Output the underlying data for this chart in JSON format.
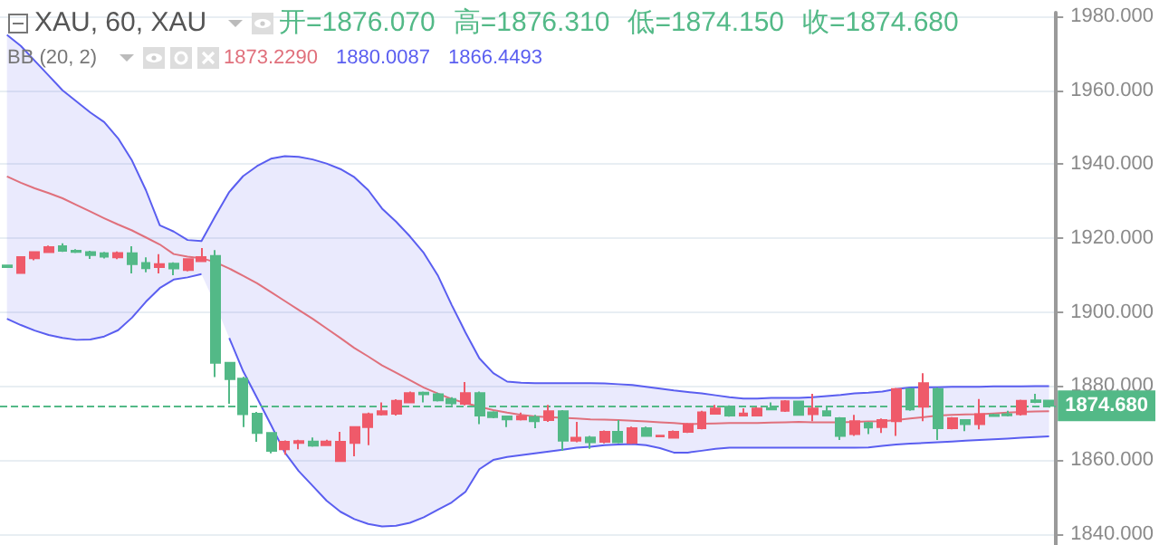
{
  "chart_data": {
    "type": "candlestick",
    "annotations": [
      "XAU, 60, XAU",
      "开=1876.070",
      "高=1876.310",
      "低=1874.150",
      "收=1874.680",
      "BB (20, 2)",
      "1873.2290",
      "1880.0087",
      "1866.4493"
    ],
    "categories": [
      null,
      null,
      null,
      null,
      null,
      null,
      null,
      null,
      null,
      null,
      null,
      null,
      null,
      null,
      null,
      null,
      null,
      null,
      null,
      null,
      null,
      null,
      null,
      null,
      null,
      null,
      null,
      null,
      null,
      null,
      null,
      null,
      null,
      null,
      null,
      null,
      null,
      null,
      null,
      null,
      null,
      null,
      null,
      null,
      null,
      null,
      null,
      null,
      null,
      null,
      null,
      null,
      null,
      null,
      null,
      null,
      null,
      null,
      null,
      null,
      null,
      null,
      null,
      null,
      null,
      null,
      null,
      null,
      null,
      null,
      null,
      null,
      null,
      null,
      null,
      null
    ],
    "ohlc": [
      [
        1912.6,
        1912.8,
        1912.0,
        1912.2
      ],
      [
        1910.6,
        1915.0,
        1910.5,
        1914.9
      ],
      [
        1914.6,
        1916.5,
        1914.0,
        1916.2
      ],
      [
        1916.2,
        1918.0,
        1916.0,
        1917.6
      ],
      [
        1917.8,
        1918.6,
        1916.3,
        1916.6
      ],
      [
        1916.6,
        1917.0,
        1916.0,
        1916.3
      ],
      [
        1916.2,
        1916.6,
        1914.4,
        1915.4
      ],
      [
        1915.9,
        1916.3,
        1914.5,
        1915.0
      ],
      [
        1914.8,
        1916.4,
        1914.3,
        1916.0
      ],
      [
        1915.9,
        1917.8,
        1910.5,
        1913.0
      ],
      [
        1913.3,
        1914.8,
        1910.8,
        1911.9
      ],
      [
        1912.2,
        1915.7,
        1910.5,
        1913.0
      ],
      [
        1913.1,
        1913.5,
        1910.0,
        1911.8
      ],
      [
        1911.4,
        1914.6,
        1911.0,
        1914.3
      ],
      [
        1913.8,
        1917.3,
        1913.6,
        1914.9
      ],
      [
        1915.2,
        1916.8,
        1882.4,
        1886.3
      ],
      [
        1886.3,
        1886.5,
        1875.2,
        1881.9
      ],
      [
        1882.0,
        1882.5,
        1868.9,
        1872.4
      ],
      [
        1872.5,
        1873.0,
        1864.9,
        1867.3
      ],
      [
        1867.3,
        1867.5,
        1861.8,
        1862.5
      ],
      [
        1862.9,
        1865.3,
        1861.4,
        1864.9
      ],
      [
        1864.6,
        1865.5,
        1862.9,
        1865.1
      ],
      [
        1865.0,
        1866.1,
        1863.6,
        1863.9
      ],
      [
        1864.0,
        1865.5,
        1863.8,
        1865.0
      ],
      [
        1859.7,
        1867.6,
        1859.5,
        1864.9
      ],
      [
        1864.6,
        1869.0,
        1861.0,
        1868.9
      ],
      [
        1868.9,
        1872.8,
        1864.0,
        1872.4
      ],
      [
        1872.3,
        1875.6,
        1872.0,
        1873.2
      ],
      [
        1872.5,
        1876.4,
        1872.0,
        1876.0
      ],
      [
        1875.6,
        1878.5,
        1875.3,
        1878.1
      ],
      [
        1878.2,
        1878.5,
        1875.6,
        1877.8
      ],
      [
        1877.8,
        1878.2,
        1875.8,
        1876.1
      ],
      [
        1876.5,
        1877.0,
        1874.8,
        1875.3
      ],
      [
        1875.2,
        1881.1,
        1874.8,
        1878.1
      ],
      [
        1878.1,
        1878.5,
        1869.7,
        1872.0
      ],
      [
        1872.9,
        1873.2,
        1871.3,
        1871.6
      ],
      [
        1871.8,
        1872.0,
        1868.9,
        1871.0
      ],
      [
        1871.0,
        1872.8,
        1870.7,
        1871.8
      ],
      [
        1871.6,
        1872.2,
        1868.6,
        1870.5
      ],
      [
        1870.8,
        1874.9,
        1870.3,
        1873.2
      ],
      [
        1873.2,
        1873.5,
        1862.5,
        1865.2
      ],
      [
        1865.2,
        1870.3,
        1864.8,
        1866.0
      ],
      [
        1866.1,
        1866.5,
        1863.0,
        1864.8
      ],
      [
        1864.9,
        1868.0,
        1864.5,
        1867.6
      ],
      [
        1867.6,
        1870.8,
        1864.5,
        1864.8
      ],
      [
        1864.6,
        1869.0,
        1864.3,
        1868.6
      ],
      [
        1868.6,
        1869.0,
        1866.3,
        1866.5
      ],
      [
        1866.4,
        1866.8,
        1866.2,
        1866.6
      ],
      [
        1866.0,
        1868.0,
        1865.8,
        1867.6
      ],
      [
        1867.6,
        1870.0,
        1867.3,
        1869.7
      ],
      [
        1868.6,
        1873.3,
        1868.3,
        1872.9
      ],
      [
        1872.5,
        1874.9,
        1872.3,
        1873.9
      ],
      [
        1874.4,
        1874.8,
        1871.7,
        1872.0
      ],
      [
        1872.0,
        1874.0,
        1871.8,
        1872.6
      ],
      [
        1872.0,
        1874.3,
        1871.8,
        1873.9
      ],
      [
        1874.0,
        1875.6,
        1873.4,
        1873.7
      ],
      [
        1873.3,
        1876.2,
        1873.0,
        1875.9
      ],
      [
        1875.8,
        1876.0,
        1872.0,
        1872.2
      ],
      [
        1872.4,
        1877.9,
        1870.5,
        1873.9
      ],
      [
        1873.2,
        1874.3,
        1871.8,
        1872.0
      ],
      [
        1871.3,
        1871.6,
        1865.4,
        1866.5
      ],
      [
        1867.0,
        1872.2,
        1866.5,
        1870.5
      ],
      [
        1870.0,
        1870.3,
        1867.0,
        1868.8
      ],
      [
        1868.9,
        1871.2,
        1867.3,
        1870.8
      ],
      [
        1870.5,
        1879.5,
        1866.5,
        1879.2
      ],
      [
        1879.2,
        1879.5,
        1873.3,
        1873.7
      ],
      [
        1874.4,
        1883.5,
        1870.5,
        1880.8
      ],
      [
        1879.2,
        1879.6,
        1865.4,
        1868.6
      ],
      [
        1868.6,
        1871.6,
        1868.3,
        1871.3
      ],
      [
        1870.8,
        1871.0,
        1867.8,
        1869.7
      ],
      [
        1869.7,
        1876.5,
        1868.3,
        1872.4
      ],
      [
        1872.2,
        1872.5,
        1871.7,
        1871.9
      ],
      [
        1872.4,
        1873.3,
        1871.8,
        1872.1
      ],
      [
        1872.4,
        1876.3,
        1872.0,
        1876.0
      ],
      [
        1876.1,
        1877.9,
        1875.4,
        1875.7
      ],
      [
        1876.07,
        1876.31,
        1874.15,
        1874.68
      ]
    ],
    "colors": [
      "#53b987",
      "#ef5a6a",
      "#ef5a6a",
      "#ef5a6a",
      "#53b987",
      "#53b987",
      "#53b987",
      "#53b987",
      "#ef5a6a",
      "#53b987",
      "#53b987",
      "#ef5a6a",
      "#53b987",
      "#ef5a6a",
      "#ef5a6a",
      "#53b987",
      "#53b987",
      "#53b987",
      "#53b987",
      "#53b987",
      "#ef5a6a",
      "#ef5a6a",
      "#53b987",
      "#ef5a6a",
      "#ef5a6a",
      "#ef5a6a",
      "#ef5a6a",
      "#ef5a6a",
      "#ef5a6a",
      "#ef5a6a",
      "#53b987",
      "#53b987",
      "#53b987",
      "#ef5a6a",
      "#53b987",
      "#53b987",
      "#53b987",
      "#ef5a6a",
      "#53b987",
      "#ef5a6a",
      "#53b987",
      "#ef5a6a",
      "#53b987",
      "#ef5a6a",
      "#53b987",
      "#ef5a6a",
      "#53b987",
      "#ef5a6a",
      "#ef5a6a",
      "#ef5a6a",
      "#ef5a6a",
      "#ef5a6a",
      "#53b987",
      "#ef5a6a",
      "#ef5a6a",
      "#53b987",
      "#ef5a6a",
      "#53b987",
      "#ef5a6a",
      "#53b987",
      "#53b987",
      "#ef5a6a",
      "#53b987",
      "#ef5a6a",
      "#ef5a6a",
      "#53b987",
      "#ef5a6a",
      "#53b987",
      "#ef5a6a",
      "#53b987",
      "#ef5a6a",
      "#53b987",
      "#53b987",
      "#ef5a6a",
      "#53b987",
      "#53b987"
    ],
    "series": [
      {
        "type": "line",
        "color": "#e0707c",
        "upper": [
          1975,
          1972,
          1968,
          1964,
          1960,
          1957,
          1954,
          1951.4,
          1947,
          1941,
          1933,
          1923.5,
          1921.8,
          1919.5,
          1919.2,
          1926,
          1932.5,
          1936.8,
          1939.5,
          1941.5,
          1942.2,
          1942,
          1941.3,
          1940.2,
          1938.7,
          1936.5,
          1933,
          1928,
          1924.5,
          1920.5,
          1916,
          1910,
          1902,
          1894.5,
          1887.5,
          1883.5,
          1881.2,
          1880.9,
          1880.8,
          1880.8,
          1880.8,
          1880.8,
          1880.8,
          1880.7,
          1880.5,
          1880.3,
          1879.8,
          1879.3,
          1878.8,
          1878.4,
          1878,
          1877.5,
          1877,
          1876.6,
          1876.6,
          1876.8,
          1876.8,
          1876.8,
          1877,
          1877.3,
          1877.6,
          1878,
          1878.2,
          1878.5,
          1879.2,
          1879.6,
          1879.7,
          1879.7,
          1879.8,
          1879.8,
          1879.8,
          1879.9,
          1879.9,
          1879.9,
          1880,
          1880.0
        ],
        "lower": [
          1898.2,
          1896.5,
          1895,
          1893.8,
          1893,
          1892.5,
          1892.6,
          1893.4,
          1895.1,
          1898.5,
          1902.8,
          1906.5,
          1908.8,
          1909.4,
          1910.3,
          1902,
          1893,
          1884,
          1876.8,
          1869.5,
          1862,
          1857,
          1853,
          1849,
          1846,
          1844,
          1842.7,
          1842,
          1842.2,
          1843,
          1844.5,
          1846.5,
          1848.5,
          1851.4,
          1857.5,
          1860,
          1860.8,
          1861.3,
          1861.8,
          1862.3,
          1862.8,
          1863.3,
          1863.6,
          1864,
          1864.2,
          1864.3,
          1864,
          1863.2,
          1862,
          1862,
          1862.5,
          1863,
          1863.3,
          1863.3,
          1863.3,
          1863.3,
          1863.3,
          1863.3,
          1863.3,
          1863.3,
          1863.3,
          1863.3,
          1863.4,
          1863.8,
          1864.2,
          1864.4,
          1864.6,
          1864.8,
          1865,
          1865.2,
          1865.4,
          1865.6,
          1865.8,
          1866,
          1866.2,
          1866.4
        ],
        "values": [
          1936.7,
          1935,
          1933.5,
          1932.2,
          1930.8,
          1929,
          1927.2,
          1925.4,
          1923.7,
          1922.1,
          1920.2,
          1918.3,
          1915.7,
          1915,
          1914.6,
          1913.5,
          1911.8,
          1909.8,
          1907.8,
          1905.4,
          1903,
          1900.6,
          1898.2,
          1895.6,
          1893,
          1890.3,
          1888,
          1885.6,
          1883.6,
          1881.6,
          1879.6,
          1878,
          1876.5,
          1875.4,
          1874.4,
          1873.5,
          1872.8,
          1872.2,
          1871.8,
          1871.6,
          1871.4,
          1871.2,
          1871,
          1870.9,
          1870.8,
          1870.6,
          1870.4,
          1870.2,
          1870,
          1869.7,
          1869.8,
          1869.9,
          1870,
          1870,
          1870,
          1870.1,
          1870.2,
          1870.3,
          1870.2,
          1870.2,
          1870.2,
          1870.3,
          1870.4,
          1870.5,
          1870.8,
          1871.2,
          1871.6,
          1872,
          1872.2,
          1872.3,
          1872.4,
          1872.6,
          1872.8,
          1873,
          1873.1,
          1873.2
        ]
      },
      {
        "type": "line",
        "color": "#5a5ef0",
        "values": [
          1975,
          1972,
          1968,
          1964,
          1960,
          1957,
          1954,
          1951.4,
          1947,
          1941,
          1933,
          1923.5,
          1921.8,
          1919.5,
          1919.2,
          1926,
          1932.5,
          1936.8,
          1939.5,
          1941.5,
          1942.2,
          1942,
          1941.3,
          1940.2,
          1938.7,
          1936.5,
          1933,
          1928,
          1924.5,
          1920.5,
          1916,
          1910,
          1902,
          1894.5,
          1887.5,
          1883.5,
          1881.2,
          1880.9,
          1880.8,
          1880.8,
          1880.8,
          1880.8,
          1880.8,
          1880.7,
          1880.5,
          1880.3,
          1879.8,
          1879.3,
          1878.8,
          1878.4,
          1878,
          1877.5,
          1877,
          1876.6,
          1876.6,
          1876.8,
          1876.8,
          1876.8,
          1877,
          1877.3,
          1877.6,
          1878,
          1878.2,
          1878.5,
          1879.2,
          1879.6,
          1879.7,
          1879.7,
          1879.8,
          1879.8,
          1879.8,
          1879.9,
          1879.9,
          1879.9,
          1880,
          1880.0
        ]
      },
      {
        "type": "line",
        "color": "#5a5ef0",
        "values": [
          1898.2,
          1896.5,
          1895,
          1893.8,
          1893,
          1892.5,
          1892.6,
          1893.4,
          1895.1,
          1898.5,
          1902.8,
          1906.5,
          1908.8,
          1909.4,
          1910.3,
          null,
          1893,
          1884,
          1876.8,
          1869.5,
          1862,
          1857,
          1853,
          1849,
          1846,
          1844,
          1842.7,
          1842,
          1842.2,
          1843,
          1844.5,
          1846.5,
          1848.5,
          1851.4,
          1857.5,
          1860,
          1860.8,
          1861.3,
          1861.8,
          1862.3,
          1862.8,
          1863.3,
          1863.6,
          1864,
          1864.2,
          1864.3,
          1864,
          1863.2,
          1862,
          1862,
          1862.5,
          1863,
          1863.3,
          1863.3,
          1863.3,
          1863.3,
          1863.3,
          1863.3,
          1863.3,
          1863.3,
          1863.3,
          1863.3,
          1863.4,
          1863.8,
          1864.2,
          1864.4,
          1864.6,
          1864.8,
          1865,
          1865.2,
          1865.4,
          1865.6,
          1865.8,
          1866,
          1866.2,
          1866.4
        ]
      }
    ],
    "ref_lines": [
      {
        "axis": "y",
        "value": 1874.68,
        "label": "1874.680",
        "color": "#53b987",
        "line_style": "dashed"
      }
    ],
    "ylim": [
      1837,
      1981
    ],
    "yticks": [
      {
        "value": 1840,
        "label": "1840.000"
      },
      {
        "value": 1860,
        "label": "1860.000"
      },
      {
        "value": 1880,
        "label": "1880.000"
      },
      {
        "value": 1900,
        "label": "1900.000"
      },
      {
        "value": 1920,
        "label": "1920.000"
      },
      {
        "value": 1940,
        "label": "1940.000"
      },
      {
        "value": 1960,
        "label": "1960.000"
      },
      {
        "value": 1980,
        "label": "1980.000"
      }
    ],
    "grid": "y",
    "tick_labels": "y"
  }
}
